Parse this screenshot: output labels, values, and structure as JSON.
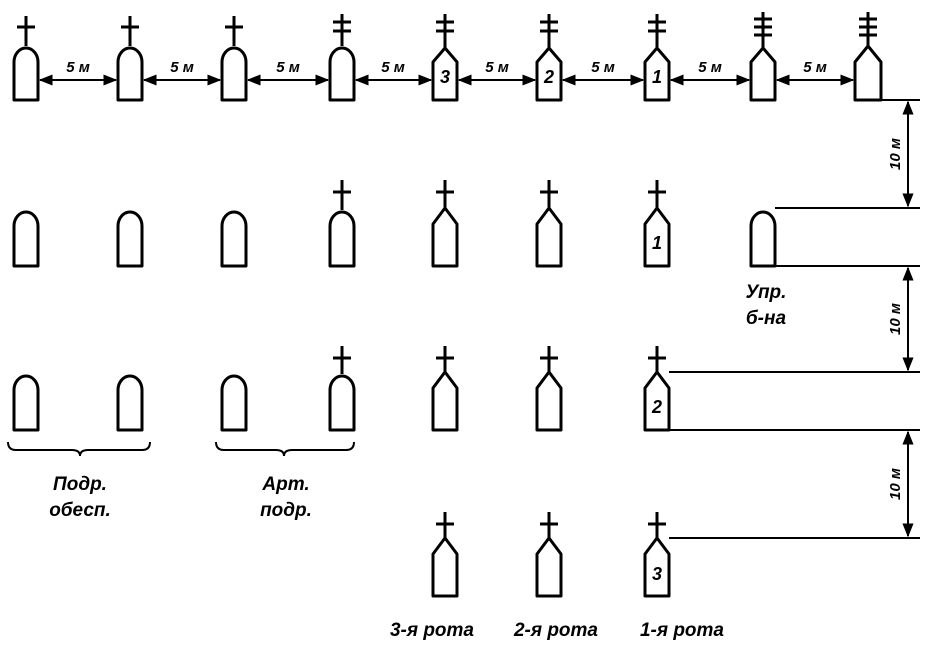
{
  "spacing": {
    "horizontal_label": "5 м",
    "vertical_label": "10 м"
  },
  "markers": {
    "row1": [
      "",
      "",
      "",
      "",
      "3",
      "2",
      "1",
      "",
      ""
    ],
    "row2": [
      "1"
    ],
    "row3": [
      "2"
    ],
    "row4": [
      "3"
    ]
  },
  "labels": {
    "battalion_hq_line1": "Упр.",
    "battalion_hq_line2": "б-на",
    "support_line1": "Подр.",
    "support_line2": "обесп.",
    "artillery_line1": "Арт.",
    "artillery_line2": "подр.",
    "company3": "3-я рота",
    "company2": "2-я рота",
    "company1": "1-я рота"
  },
  "colors": {
    "ink": "#000000",
    "background": "#ffffff"
  }
}
